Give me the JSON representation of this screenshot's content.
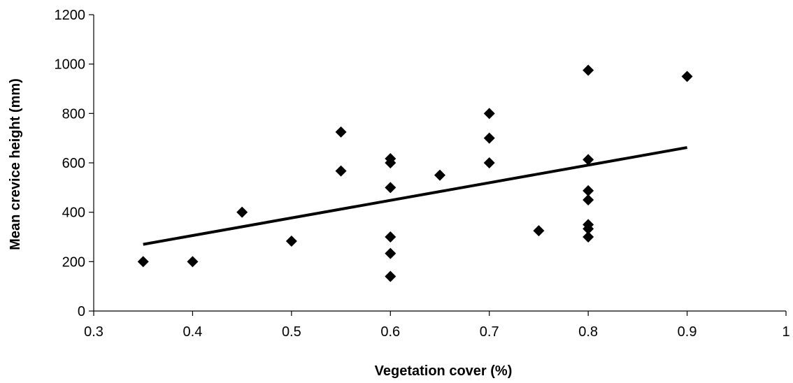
{
  "chart_data": {
    "type": "scatter",
    "title": "",
    "xlabel": "Vegetation cover (%)",
    "ylabel": "Mean crevice height (mm)",
    "xlim": [
      0.3,
      1
    ],
    "ylim": [
      0,
      1200
    ],
    "xticks": [
      0.3,
      0.4,
      0.5,
      0.6,
      0.7,
      0.8,
      0.9,
      1
    ],
    "xtick_labels": [
      "0.3",
      "0.4",
      "0.5",
      "0.6",
      "0.7",
      "0.8",
      "0.9",
      "1"
    ],
    "yticks": [
      0,
      200,
      400,
      600,
      800,
      1000,
      1200
    ],
    "ytick_labels": [
      "0",
      "200",
      "400",
      "600",
      "800",
      "1000",
      "1200"
    ],
    "grid": false,
    "legend": "none",
    "marker": "diamond",
    "series": [
      {
        "points": [
          [
            0.35,
            200
          ],
          [
            0.4,
            200
          ],
          [
            0.45,
            400
          ],
          [
            0.5,
            283
          ],
          [
            0.55,
            725
          ],
          [
            0.55,
            567
          ],
          [
            0.6,
            617
          ],
          [
            0.6,
            600
          ],
          [
            0.6,
            500
          ],
          [
            0.6,
            300
          ],
          [
            0.6,
            233
          ],
          [
            0.6,
            140
          ],
          [
            0.65,
            550
          ],
          [
            0.7,
            800
          ],
          [
            0.7,
            700
          ],
          [
            0.7,
            600
          ],
          [
            0.75,
            325
          ],
          [
            0.8,
            975
          ],
          [
            0.8,
            613
          ],
          [
            0.8,
            487
          ],
          [
            0.8,
            450
          ],
          [
            0.8,
            350
          ],
          [
            0.8,
            333
          ],
          [
            0.8,
            300
          ],
          [
            0.9,
            950
          ]
        ]
      }
    ],
    "trendline": {
      "type": "linear",
      "x": [
        0.35,
        0.9
      ],
      "y": [
        270,
        662
      ]
    },
    "colors": {
      "marker": "#000000",
      "line": "#000000",
      "axis": "#000000"
    }
  }
}
